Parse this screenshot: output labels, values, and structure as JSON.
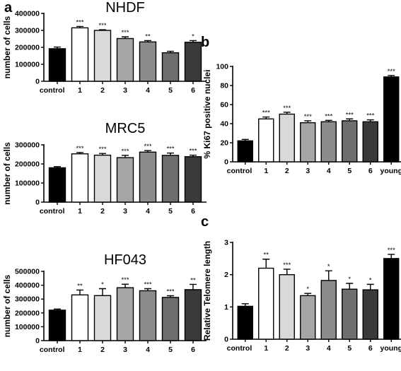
{
  "panel_labels": [
    "a",
    "b",
    "c"
  ],
  "colors": {
    "control": "#000000",
    "s1": "#ffffff",
    "s2": "#d9d9d9",
    "s3": "#a6a6a6",
    "s4": "#8c8c8c",
    "s5": "#6e6e6e",
    "s6": "#3a3a3a",
    "young": "#000000"
  },
  "chart_data": [
    {
      "id": "nhdf",
      "panel": "a",
      "type": "bar",
      "title": "NHDF",
      "ylabel": "number of cells",
      "ylim": [
        0,
        400000
      ],
      "yticks": [
        0,
        100000,
        200000,
        300000,
        400000
      ],
      "categories": [
        "control",
        "1",
        "2",
        "3",
        "4",
        "5",
        "6"
      ],
      "values": [
        192000,
        315000,
        300000,
        252000,
        232000,
        168000,
        230000
      ],
      "errors": [
        10000,
        8000,
        4000,
        10000,
        8000,
        9000,
        10000
      ],
      "significance": [
        "",
        "***",
        "***",
        "***",
        "**",
        "",
        "*"
      ]
    },
    {
      "id": "mrc5",
      "panel": "a",
      "type": "bar",
      "title": "MRC5",
      "ylabel": "number of cells",
      "ylim": [
        0,
        300000
      ],
      "yticks": [
        0,
        100000,
        200000,
        300000
      ],
      "categories": [
        "control",
        "1",
        "2",
        "3",
        "4",
        "5",
        "6"
      ],
      "values": [
        180000,
        253000,
        246000,
        233000,
        262000,
        245000,
        238000
      ],
      "errors": [
        6000,
        7000,
        9000,
        12000,
        8000,
        12000,
        8000
      ],
      "significance": [
        "",
        "***",
        "***",
        "***",
        "***",
        "***",
        "***"
      ]
    },
    {
      "id": "hf043",
      "panel": "a",
      "type": "bar",
      "title": "HF043",
      "ylabel": "number of cells",
      "ylim": [
        0,
        500000
      ],
      "yticks": [
        0,
        100000,
        200000,
        300000,
        400000,
        500000
      ],
      "categories": [
        "control",
        "1",
        "2",
        "3",
        "4",
        "5",
        "6"
      ],
      "values": [
        220000,
        330000,
        325000,
        382000,
        360000,
        312000,
        368000
      ],
      "errors": [
        8000,
        35000,
        50000,
        25000,
        15000,
        12000,
        38000
      ],
      "significance": [
        "",
        "**",
        "*",
        "***",
        "***",
        "***",
        "**"
      ]
    },
    {
      "id": "ki67",
      "panel": "b",
      "type": "bar",
      "title": "",
      "ylabel": "% Ki67 positive nuclei",
      "ylim": [
        0,
        100
      ],
      "yticks": [
        0,
        20,
        40,
        60,
        80,
        100
      ],
      "categories": [
        "control",
        "1",
        "2",
        "3",
        "4",
        "5",
        "6",
        "young"
      ],
      "values": [
        22,
        45,
        50,
        41,
        42,
        43,
        42,
        89
      ],
      "errors": [
        1.5,
        2,
        2,
        2,
        1.5,
        2,
        2,
        1.5
      ],
      "significance": [
        "",
        "***",
        "***",
        "***",
        "***",
        "***",
        "***",
        "***"
      ]
    },
    {
      "id": "telomere",
      "panel": "c",
      "type": "bar",
      "title": "",
      "ylabel": "Relative Telomere length",
      "ylim": [
        0,
        3
      ],
      "yticks": [
        0,
        1,
        2,
        3
      ],
      "categories": [
        "control",
        "1",
        "2",
        "3",
        "4",
        "5",
        "6",
        "young"
      ],
      "values": [
        1.02,
        2.2,
        2.0,
        1.35,
        1.82,
        1.55,
        1.53,
        2.5
      ],
      "errors": [
        0.08,
        0.28,
        0.17,
        0.07,
        0.3,
        0.18,
        0.17,
        0.13
      ],
      "significance": [
        "",
        "**",
        "***",
        "*",
        "*",
        "*",
        "*",
        "***"
      ]
    }
  ]
}
